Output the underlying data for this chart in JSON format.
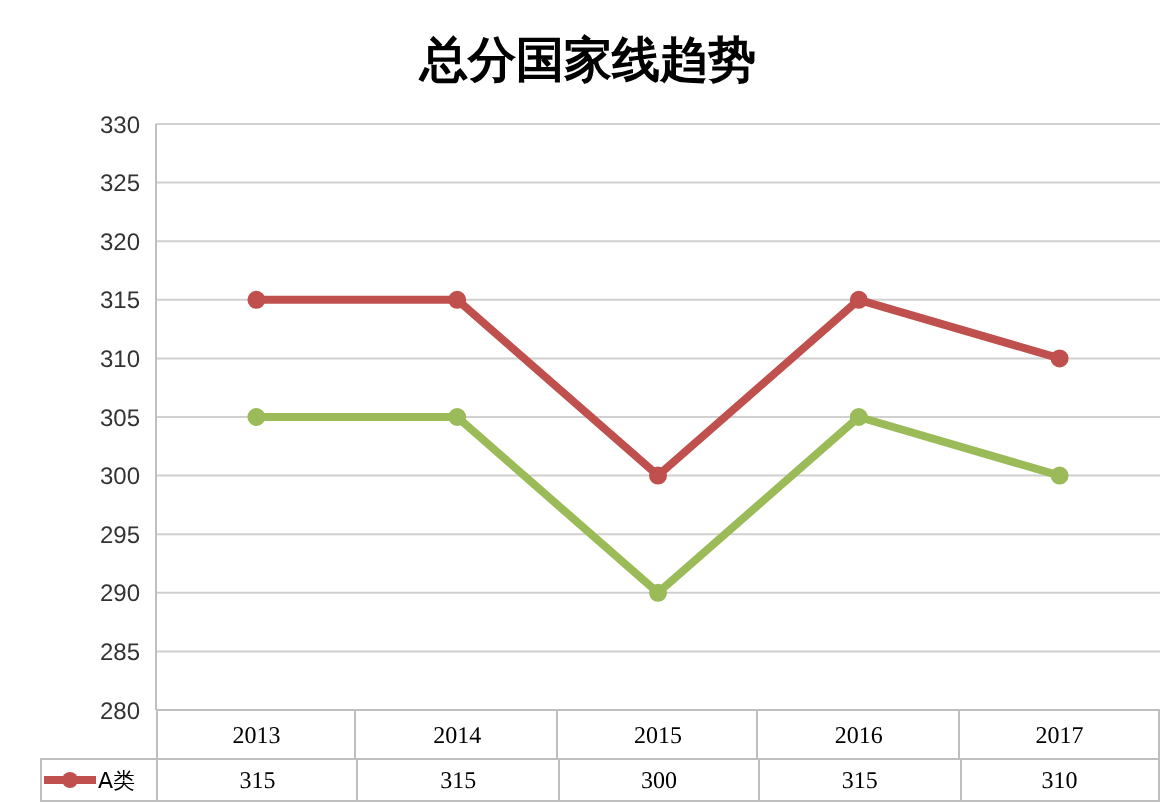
{
  "chart_data": {
    "type": "line",
    "title": "总分国家线趋势",
    "categories": [
      "2013",
      "2014",
      "2015",
      "2016",
      "2017"
    ],
    "series": [
      {
        "name": "A类",
        "color": "#c0504d",
        "values": [
          315,
          315,
          300,
          315,
          310
        ],
        "value_labels": [
          "315",
          "315",
          "300",
          "315",
          "310"
        ]
      },
      {
        "color": "#9bbb59",
        "values": [
          305,
          305,
          290,
          305,
          300
        ]
      }
    ],
    "ylim": [
      280,
      330
    ],
    "yticks": [
      280,
      285,
      290,
      295,
      300,
      305,
      310,
      315,
      320,
      325,
      330
    ],
    "grid": "y",
    "marker": "circle",
    "line_style": "solid",
    "legend": "bottom"
  }
}
